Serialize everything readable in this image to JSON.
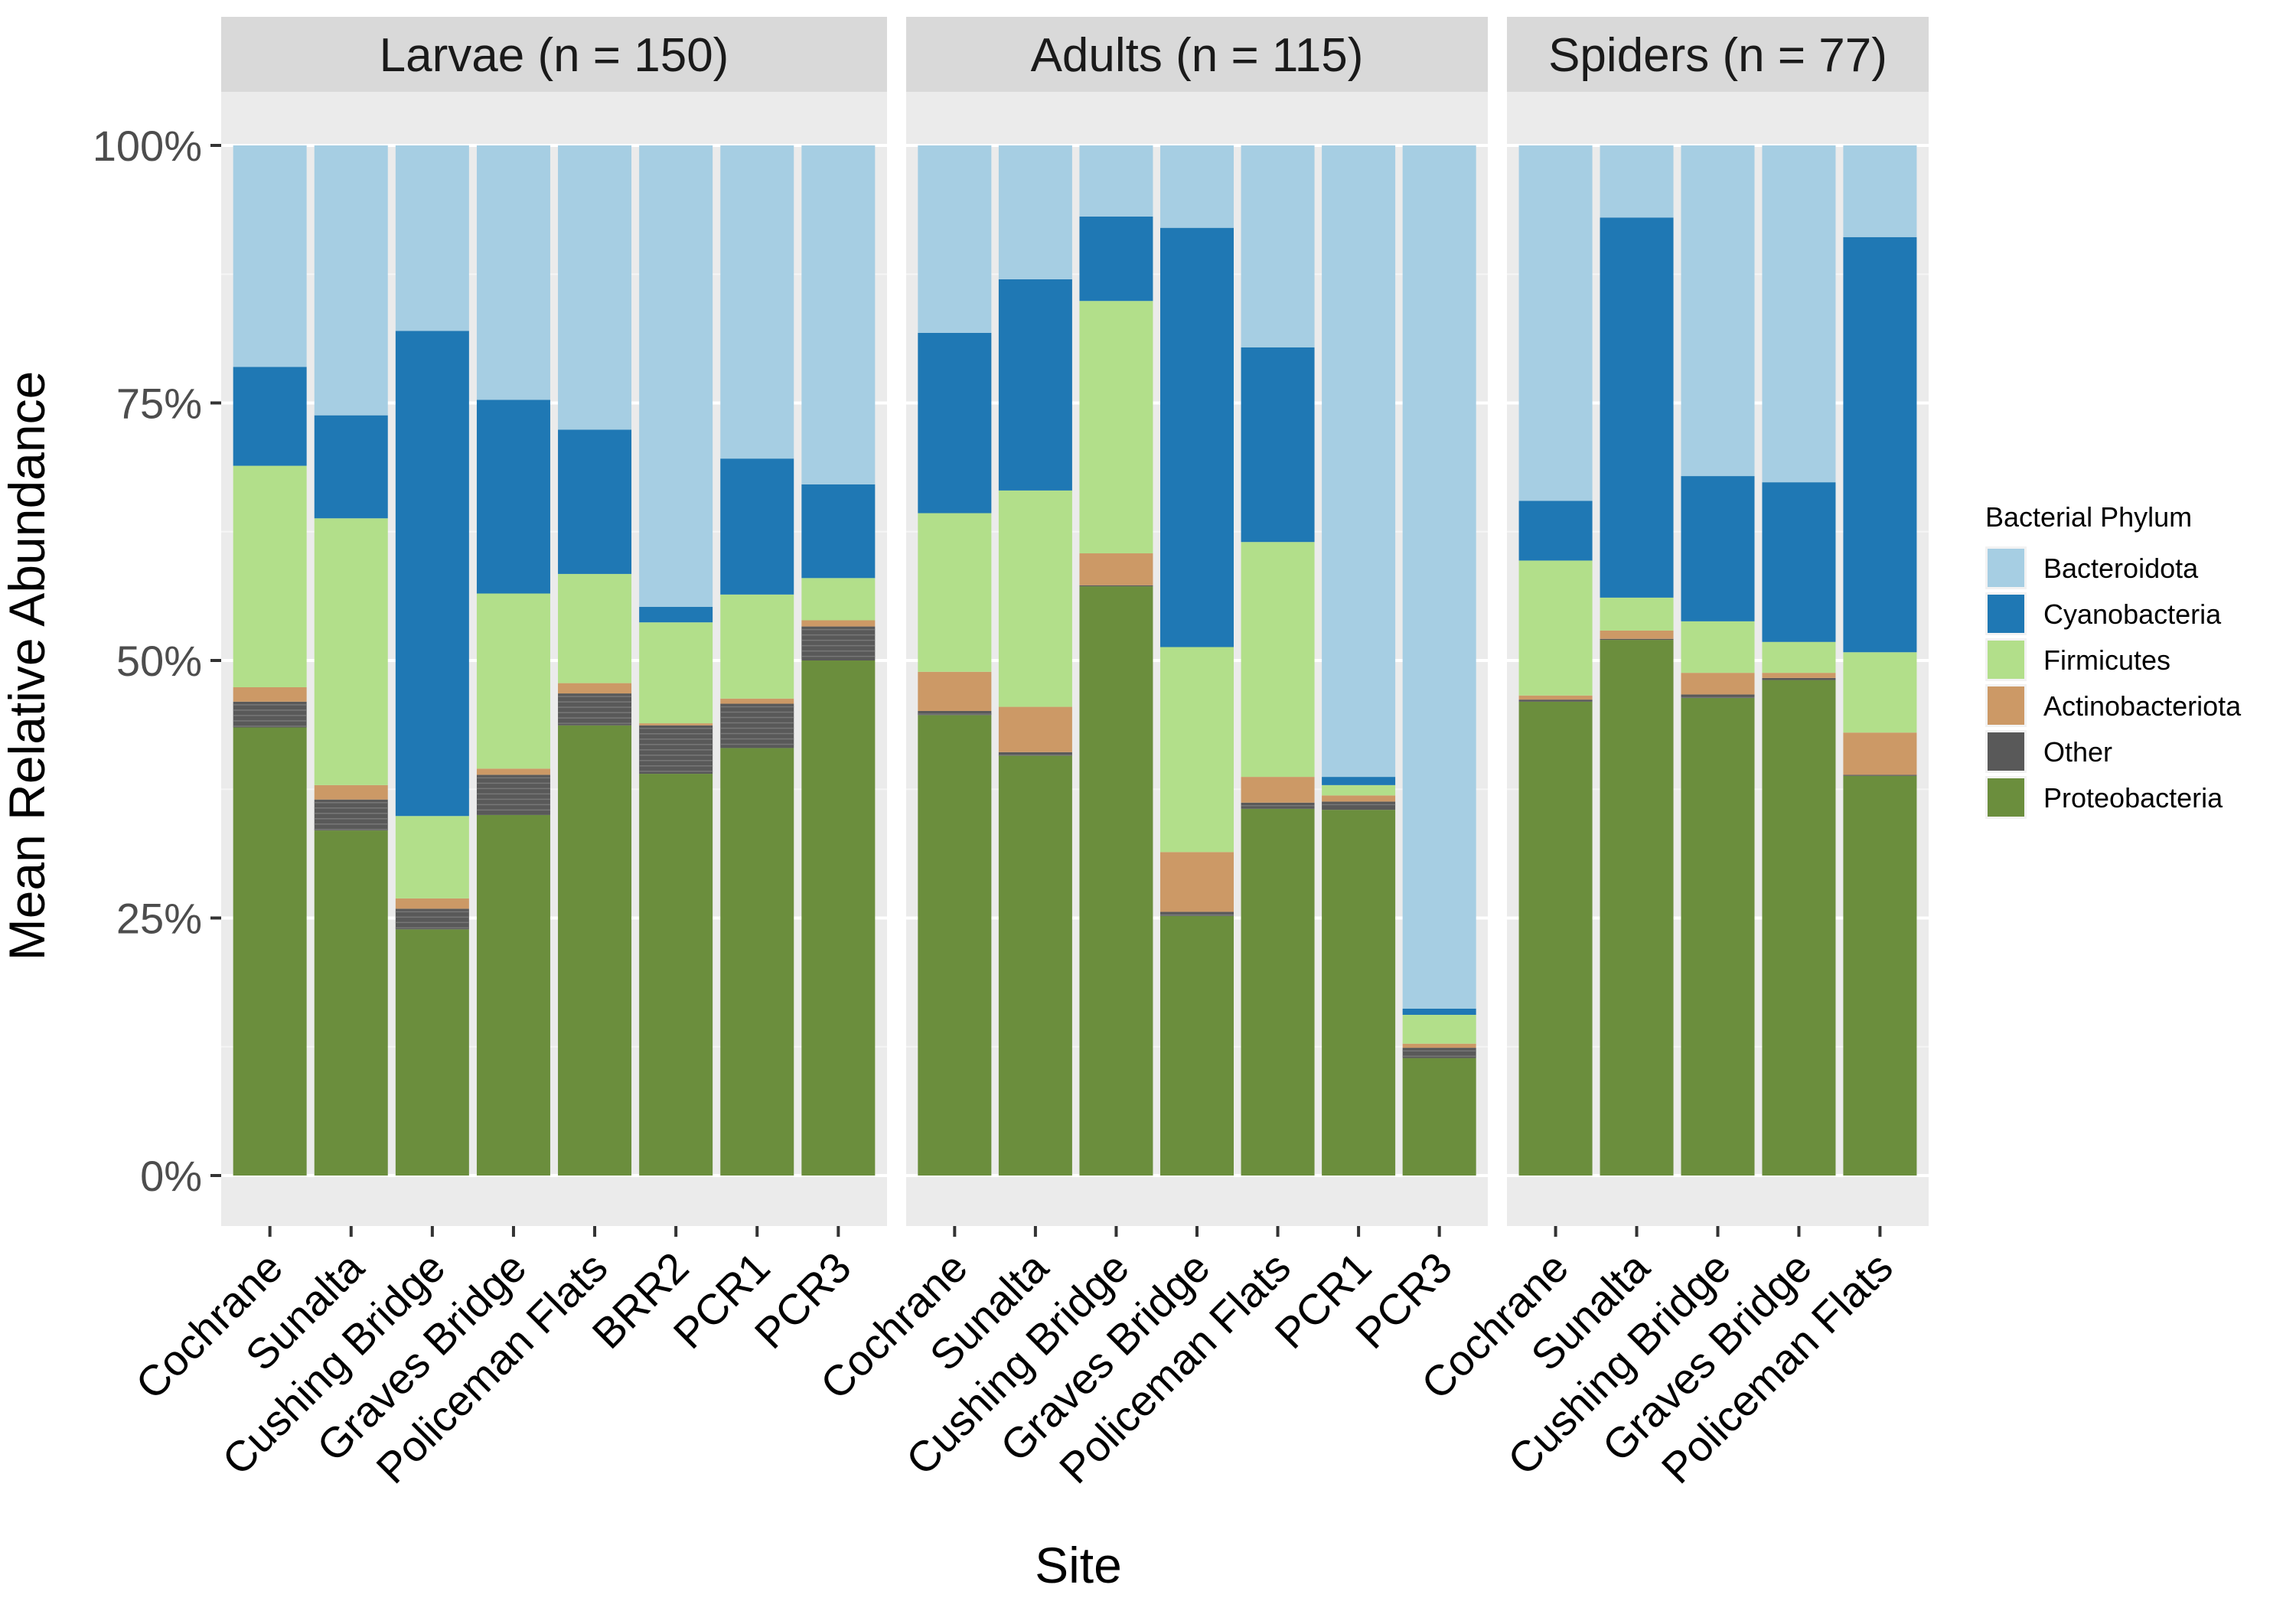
{
  "chart_data": {
    "type": "bar",
    "stacked": true,
    "percent": true,
    "xlabel": "Site",
    "ylabel": "Mean Relative Abundance",
    "ylim": [
      0,
      100
    ],
    "yticks": [
      "0%",
      "25%",
      "50%",
      "75%",
      "100%"
    ],
    "ytick_values": [
      0,
      25,
      50,
      75,
      100
    ],
    "grid": true,
    "legend": {
      "title": "Bacterial Phylum",
      "position": "right",
      "entries": [
        "Bacteroidota",
        "Cyanobacteria",
        "Firmicutes",
        "Actinobacteriota",
        "Other",
        "Proteobacteria"
      ]
    },
    "series_order_bottom_to_top": [
      "Proteobacteria",
      "Other",
      "Actinobacteriota",
      "Firmicutes",
      "Cyanobacteria",
      "Bacteroidota"
    ],
    "colors": {
      "Bacteroidota": "#a6cee3",
      "Cyanobacteria": "#1f78b4",
      "Firmicutes": "#b2df8a",
      "Actinobacteriota": "#cc9966",
      "Other": "#595959",
      "Proteobacteria": "#6b8e3d"
    },
    "facets": [
      {
        "title": "Larvae (n = 150)",
        "categories": [
          "Cochrane",
          "Sunalta",
          "Cushing Bridge",
          "Graves Bridge",
          "Policeman Flats",
          "BRR2",
          "PCR1",
          "PCR3"
        ],
        "series": [
          {
            "name": "Proteobacteria",
            "values": [
              43.5,
              33.5,
              23.9,
              35.0,
              43.7,
              39.0,
              41.5,
              50.0
            ]
          },
          {
            "name": "Other",
            "values": [
              2.5,
              3.0,
              2.0,
              3.9,
              3.1,
              4.7,
              4.3,
              3.3
            ]
          },
          {
            "name": "Actinobacteriota",
            "values": [
              1.4,
              1.4,
              1.0,
              0.6,
              1.0,
              0.2,
              0.5,
              0.6
            ]
          },
          {
            "name": "Firmicutes",
            "values": [
              21.5,
              25.9,
              8.0,
              17.0,
              10.6,
              9.8,
              10.1,
              4.1
            ]
          },
          {
            "name": "Cyanobacteria",
            "values": [
              9.6,
              10.0,
              47.1,
              18.8,
              14.0,
              1.5,
              13.2,
              9.1
            ]
          },
          {
            "name": "Bacteroidota",
            "values": [
              21.5,
              26.2,
              18.0,
              24.7,
              27.6,
              44.8,
              30.4,
              32.9
            ]
          }
        ]
      },
      {
        "title": "Adults (n = 115)",
        "categories": [
          "Cochrane",
          "Sunalta",
          "Cushing Bridge",
          "Graves Bridge",
          "Policeman Flats",
          "PCR1",
          "PCR3"
        ],
        "series": [
          {
            "name": "Proteobacteria",
            "values": [
              44.7,
              40.8,
              57.2,
              25.2,
              35.6,
              35.5,
              11.4
            ]
          },
          {
            "name": "Other",
            "values": [
              0.4,
              0.3,
              0.1,
              0.4,
              0.6,
              0.8,
              1.0
            ]
          },
          {
            "name": "Actinobacteriota",
            "values": [
              3.8,
              4.4,
              3.1,
              5.8,
              2.5,
              0.6,
              0.4
            ]
          },
          {
            "name": "Firmicutes",
            "values": [
              15.4,
              21.0,
              24.5,
              19.9,
              22.8,
              1.0,
              2.8
            ]
          },
          {
            "name": "Cyanobacteria",
            "values": [
              17.5,
              20.5,
              8.2,
              40.7,
              18.9,
              0.8,
              0.6
            ]
          },
          {
            "name": "Bacteroidota",
            "values": [
              18.2,
              13.0,
              6.9,
              8.0,
              19.6,
              61.3,
              83.8
            ]
          }
        ]
      },
      {
        "title": "Spiders (n = 77)",
        "categories": [
          "Cochrane",
          "Sunalta",
          "Cushing Bridge",
          "Graves Bridge",
          "Policeman Flats"
        ],
        "series": [
          {
            "name": "Proteobacteria",
            "values": [
              46.0,
              52.0,
              46.4,
              48.1,
              38.8
            ]
          },
          {
            "name": "Other",
            "values": [
              0.2,
              0.1,
              0.3,
              0.2,
              0.1
            ]
          },
          {
            "name": "Actinobacteriota",
            "values": [
              0.4,
              0.8,
              2.1,
              0.5,
              4.1
            ]
          },
          {
            "name": "Firmicutes",
            "values": [
              13.1,
              3.2,
              5.0,
              3.0,
              7.8
            ]
          },
          {
            "name": "Cyanobacteria",
            "values": [
              5.8,
              36.9,
              14.1,
              15.5,
              40.3
            ]
          },
          {
            "name": "Bacteroidota",
            "values": [
              34.5,
              7.0,
              32.1,
              32.7,
              8.9
            ]
          }
        ]
      }
    ]
  }
}
